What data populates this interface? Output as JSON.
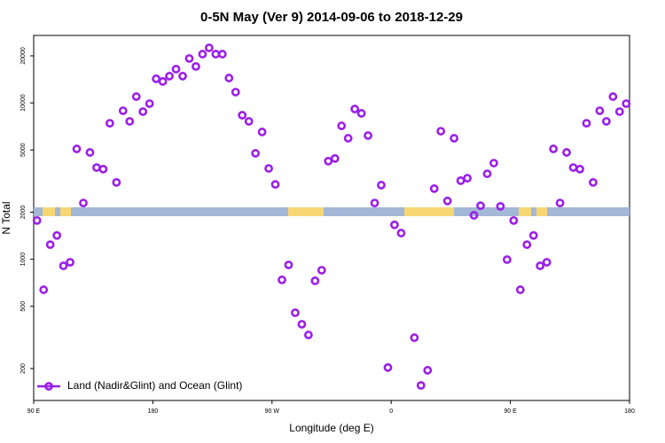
{
  "chart_data": {
    "type": "scatter",
    "title": "0-5N May (Ver 9)   2014-09-06 to 2018-12-29",
    "x_label": "Longitude (deg E)",
    "y_label": "N Total",
    "log_y": true,
    "xlim": [
      90,
      540
    ],
    "ylim": [
      125,
      27000
    ],
    "xticks": [
      {
        "value": 90,
        "label": "90 E"
      },
      180,
      {
        "value": 270,
        "label": "90 W"
      },
      {
        "value": 360,
        "label": "0"
      },
      {
        "value": 450,
        "label": "90 E"
      },
      {
        "value": 540,
        "label": "180"
      }
    ],
    "yticks": [
      200,
      500,
      1000,
      2000,
      5000,
      10000,
      20000
    ],
    "legend": "bottom-left",
    "series": [
      {
        "name": "Land (Nadir&Glint) and Ocean (Glint)",
        "color": "#9b1fe8",
        "x": [
          92.5,
          97.5,
          102.5,
          107.5,
          112.5,
          117.5,
          122.5,
          127.5,
          132.5,
          137.5,
          142.5,
          147.5,
          152.5,
          157.5,
          162.5,
          167.5,
          172.5,
          177.5,
          182.5,
          187.5,
          192.5,
          197.5,
          202.5,
          207.5,
          212.5,
          217.5,
          222.5,
          227.5,
          232.5,
          237.5,
          242.5,
          247.5,
          252.5,
          257.5,
          262.5,
          267.5,
          272.5,
          277.5,
          282.5,
          287.5,
          292.5,
          297.5,
          302.5,
          307.5,
          312.5,
          317.5,
          322.5,
          327.5,
          332.5,
          337.5,
          342.5,
          347.5,
          352.5,
          357.5,
          362.5,
          367.5,
          377.5,
          382.5,
          387.5,
          392.5,
          397.5,
          402.5,
          407.5,
          412.5,
          417.5,
          422.5,
          427.5,
          432.5,
          437.5,
          442.5,
          447.5,
          452.5,
          457.5,
          462.5,
          467.5,
          472.5,
          477.5,
          482.5,
          487.5,
          492.5,
          497.5,
          502.5,
          507.5,
          512.5,
          517.5,
          522.5,
          527.5,
          532.5,
          537.5
        ],
        "values": [
          1770,
          638,
          1240,
          1420,
          908,
          957,
          5080,
          2290,
          4820,
          3860,
          3770,
          7410,
          3100,
          8910,
          7620,
          10970,
          8790,
          9890,
          14260,
          13710,
          14830,
          16440,
          14830,
          19230,
          17100,
          20510,
          22490,
          20510,
          20510,
          14420,
          11720,
          8340,
          7620,
          4760,
          6520,
          3810,
          3010,
          738,
          920,
          455,
          384,
          328,
          728,
          851,
          4240,
          4410,
          7130,
          5940,
          9140,
          8570,
          6180,
          2290,
          2980,
          203,
          1660,
          1470,
          315,
          156,
          195,
          2830,
          6590,
          2360,
          5940,
          3180,
          3300,
          1910,
          2200,
          3520,
          4120,
          2180,
          995,
          1770,
          638,
          1240,
          1420,
          908,
          957,
          5080,
          2290,
          4820,
          3860,
          3770,
          7410,
          3100,
          8910,
          7620,
          10970,
          8790,
          9890
        ]
      }
    ]
  }
}
